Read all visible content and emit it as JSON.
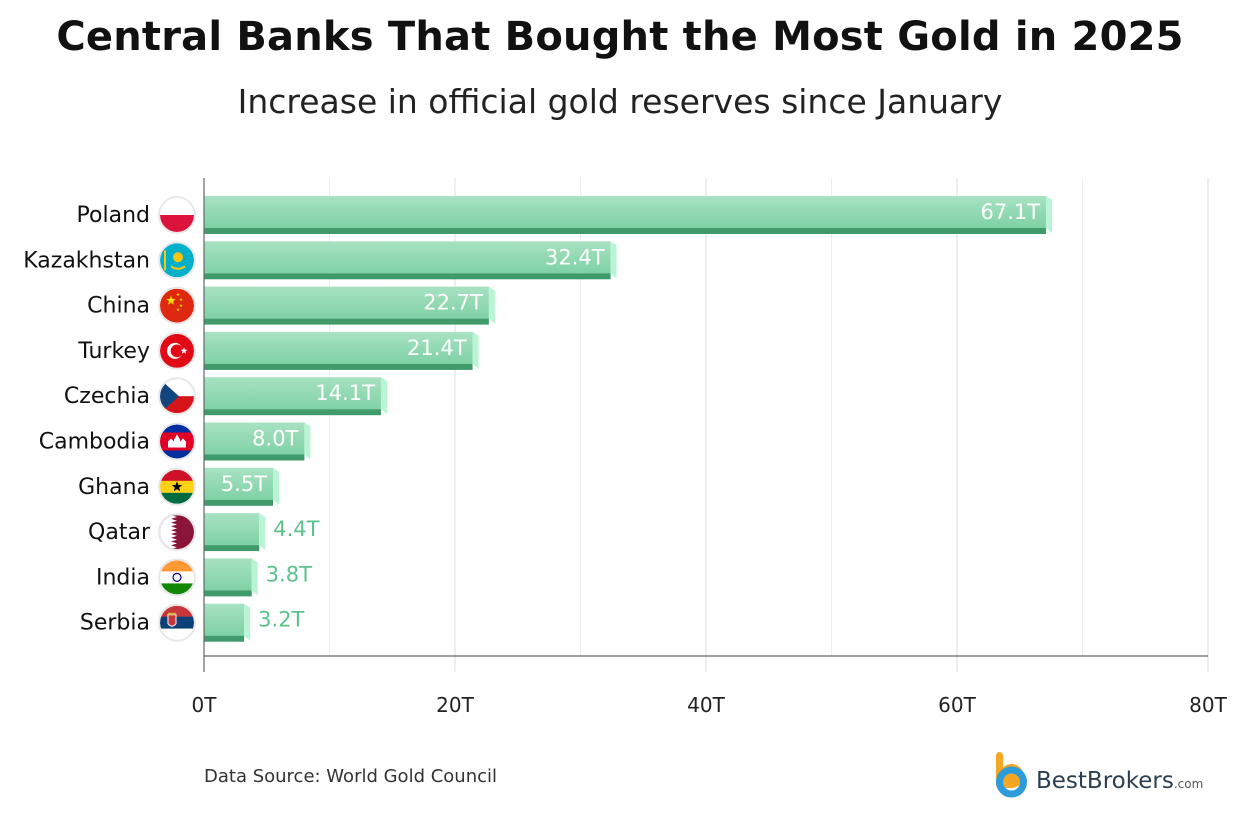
{
  "title": "Central Banks That Bought the Most Gold in 2025",
  "subtitle": "Increase in official gold reserves since January",
  "source": "Data Source: World Gold Council",
  "logo": {
    "brand": "BestBrokers",
    "suffix": ".com"
  },
  "colors": {
    "bar_light": "#a8e2c2",
    "bar_mid": "#7fd1a5",
    "bar_dark": "#3f9b6a",
    "bar_edge": "#b9f5d4",
    "label_outside": "#5cc28c",
    "gridline": "#e2e2e2",
    "axis": "#666666",
    "logo_orange": "#f5a623",
    "logo_blue": "#2d9cdb"
  },
  "chart_data": {
    "type": "bar",
    "orientation": "horizontal",
    "title": "Central Banks That Bought the Most Gold in 2025",
    "subtitle": "Increase in official gold reserves since January",
    "categories": [
      "Poland",
      "Kazakhstan",
      "China",
      "Turkey",
      "Czechia",
      "Cambodia",
      "Ghana",
      "Qatar",
      "India",
      "Serbia"
    ],
    "values": [
      67.1,
      32.4,
      22.7,
      21.4,
      14.1,
      8.0,
      5.5,
      4.4,
      3.8,
      3.2
    ],
    "value_labels": [
      "67.1T",
      "32.4T",
      "22.7T",
      "21.4T",
      "14.1T",
      "8.0T",
      "5.5T",
      "4.4T",
      "3.8T",
      "3.2T"
    ],
    "flag_icons": [
      "poland-flag-icon",
      "kazakhstan-flag-icon",
      "china-flag-icon",
      "turkey-flag-icon",
      "czechia-flag-icon",
      "cambodia-flag-icon",
      "ghana-flag-icon",
      "qatar-flag-icon",
      "india-flag-icon",
      "serbia-flag-icon"
    ],
    "xlim": [
      0,
      80
    ],
    "xticks": [
      0,
      20,
      40,
      60,
      80
    ],
    "xtick_labels": [
      "0T",
      "20T",
      "40T",
      "60T",
      "80T"
    ],
    "minor_gridlines": [
      10,
      30,
      50,
      70
    ],
    "xlabel": "",
    "ylabel": "",
    "grid": true,
    "legend": "none"
  }
}
